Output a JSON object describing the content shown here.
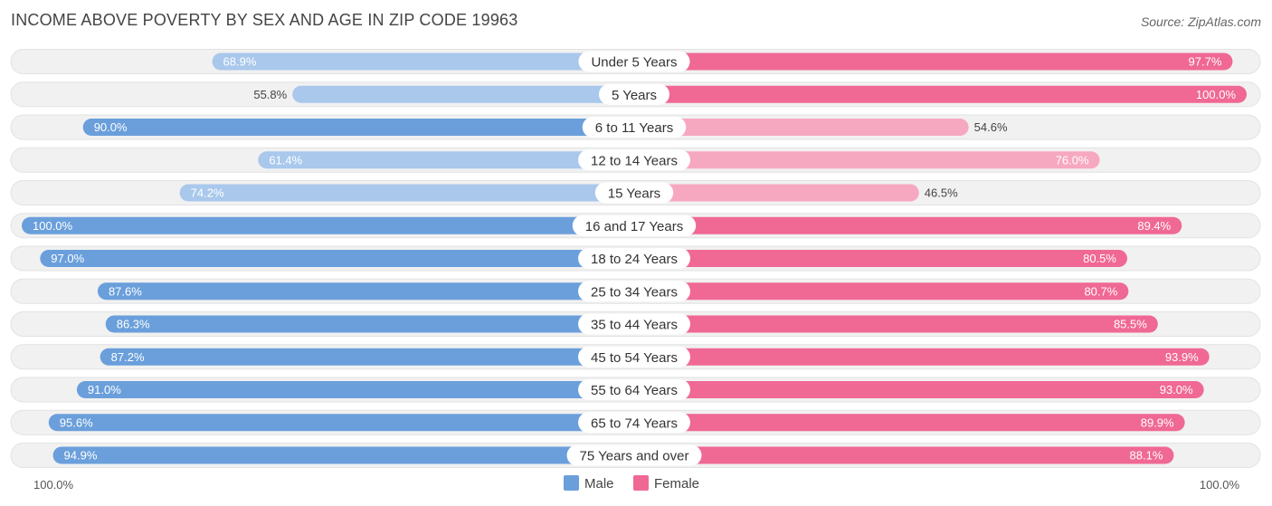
{
  "header": {
    "title": "INCOME ABOVE POVERTY BY SEX AND AGE IN ZIP CODE 19963",
    "source": "Source: ZipAtlas.com"
  },
  "colors": {
    "male_strong": "#6a9fdb",
    "male_light": "#a9c8ec",
    "female_strong": "#f06894",
    "female_light": "#f7a8c1",
    "row_bg": "#f1f1f1"
  },
  "chart_data": {
    "type": "bar",
    "orientation": "horizontal-diverging",
    "title": "INCOME ABOVE POVERTY BY SEX AND AGE IN ZIP CODE 19963",
    "categories": [
      "Under 5 Years",
      "5 Years",
      "6 to 11 Years",
      "12 to 14 Years",
      "15 Years",
      "16 and 17 Years",
      "18 to 24 Years",
      "25 to 34 Years",
      "35 to 44 Years",
      "45 to 54 Years",
      "55 to 64 Years",
      "65 to 74 Years",
      "75 Years and over"
    ],
    "series": [
      {
        "name": "Male",
        "values": [
          68.9,
          55.8,
          90.0,
          61.4,
          74.2,
          100.0,
          97.0,
          87.6,
          86.3,
          87.2,
          91.0,
          95.6,
          94.9
        ]
      },
      {
        "name": "Female",
        "values": [
          97.7,
          100.0,
          54.6,
          76.0,
          46.5,
          89.4,
          80.5,
          80.7,
          85.5,
          93.9,
          93.0,
          89.9,
          88.1
        ]
      }
    ],
    "xlim": [
      0,
      100
    ],
    "axis_left_label": "100.0%",
    "axis_right_label": "100.0%",
    "legend": [
      "Male",
      "Female"
    ],
    "legend_position": "bottom-center"
  }
}
